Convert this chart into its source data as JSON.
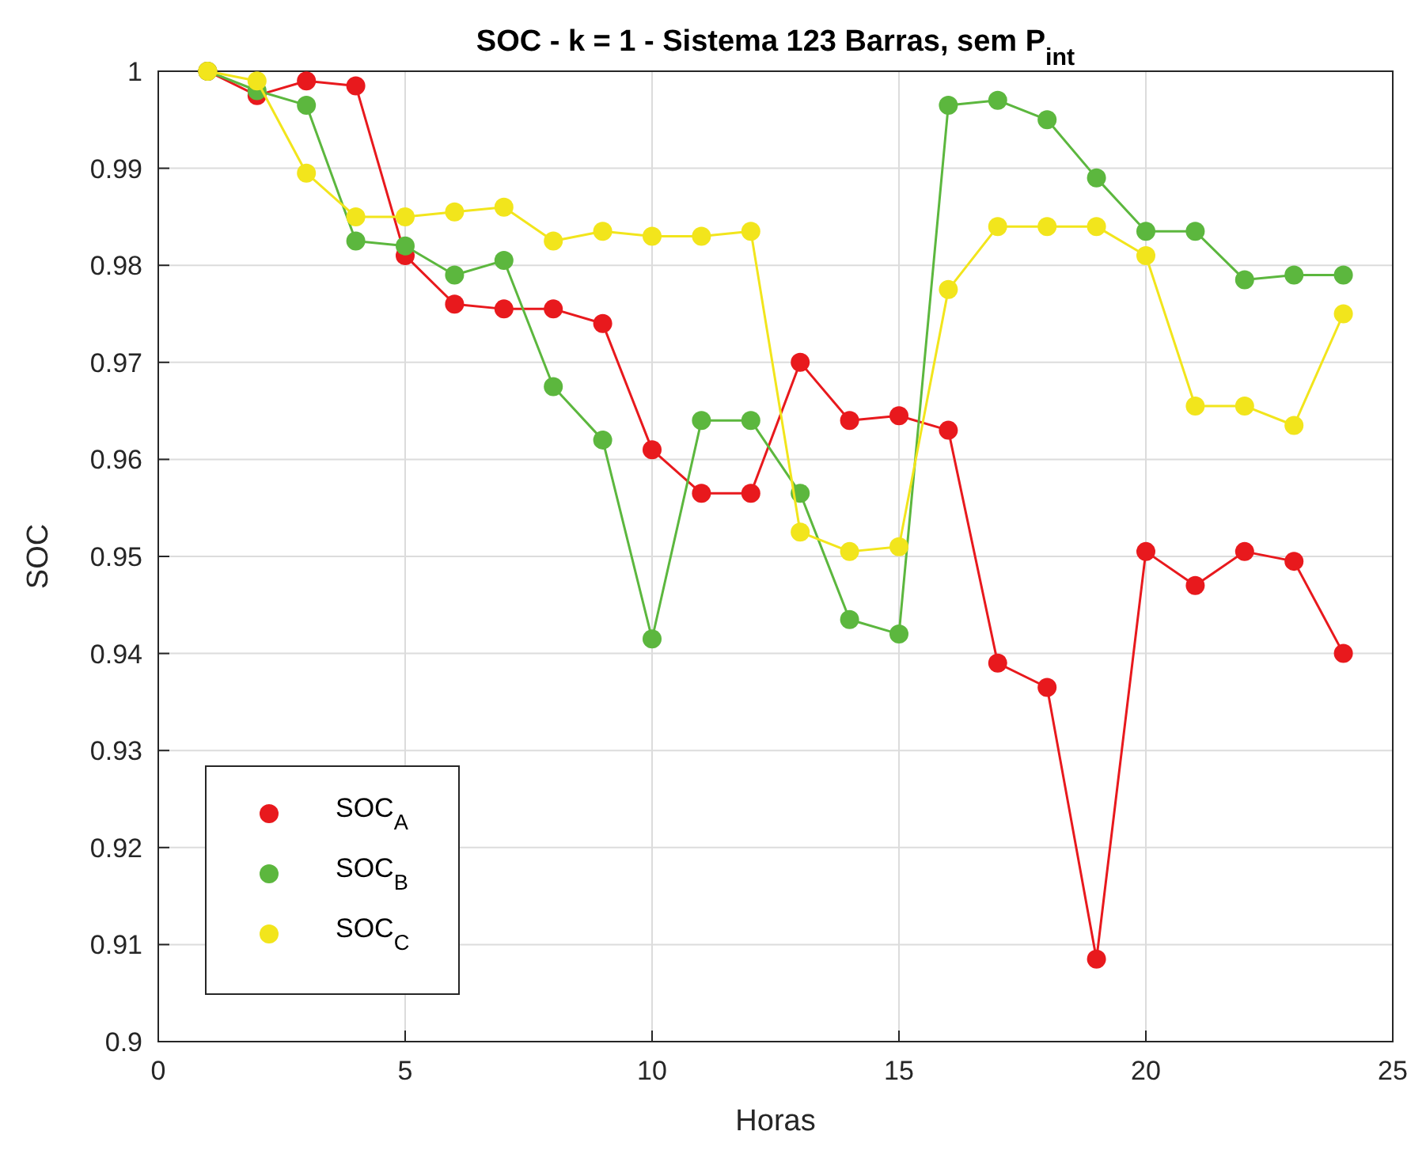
{
  "chart_data": {
    "type": "line",
    "title": "SOC - k = 1 - Sistema 123 Barras, sem P$_{int}$",
    "xlabel": "Horas",
    "ylabel": "SOC",
    "x": [
      1,
      2,
      3,
      4,
      5,
      6,
      7,
      8,
      9,
      10,
      11,
      12,
      13,
      14,
      15,
      16,
      17,
      18,
      19,
      20,
      21,
      22,
      23,
      24
    ],
    "series": [
      {
        "name": "SOC$_{A}$",
        "color": "#e8191d",
        "values": [
          1,
          0.9975,
          0.999,
          0.9985,
          0.981,
          0.976,
          0.9755,
          0.9755,
          0.974,
          0.961,
          0.9565,
          0.9565,
          0.97,
          0.964,
          0.9645,
          0.963,
          0.939,
          0.9365,
          0.9085,
          0.9505,
          0.947,
          0.9505,
          0.9495,
          0.94
        ]
      },
      {
        "name": "SOC$_{B}$",
        "color": "#5cb73e",
        "values": [
          1,
          0.998,
          0.9965,
          0.9825,
          0.982,
          0.979,
          0.9805,
          0.9675,
          0.962,
          0.9415,
          0.964,
          0.964,
          0.9565,
          0.9435,
          0.942,
          0.9965,
          0.997,
          0.995,
          0.989,
          0.9835,
          0.9835,
          0.9785,
          0.979,
          0.979
        ]
      },
      {
        "name": "SOC$_{C}$",
        "color": "#f2e51c",
        "values": [
          1,
          0.999,
          0.9895,
          0.985,
          0.985,
          0.9855,
          0.986,
          0.9825,
          0.9835,
          0.983,
          0.983,
          0.9835,
          0.9525,
          0.9505,
          0.951,
          0.9775,
          0.984,
          0.984,
          0.984,
          0.981,
          0.9655,
          0.9655,
          0.9635,
          0.975
        ]
      }
    ],
    "xlim": [
      0,
      25
    ],
    "xticks": [
      0,
      5,
      10,
      15,
      20,
      25
    ],
    "ylim": [
      0.9,
      1
    ],
    "yticks": [
      {
        "value": 0.9,
        "label": "0.9"
      },
      0.91,
      0.92,
      0.93,
      0.94,
      0.95,
      0.96,
      0.97,
      0.98,
      0.99,
      {
        "value": 1,
        "label": "1"
      }
    ],
    "grid": true,
    "legend": "bottom left",
    "marker": "circle",
    "line_style": "solid"
  }
}
